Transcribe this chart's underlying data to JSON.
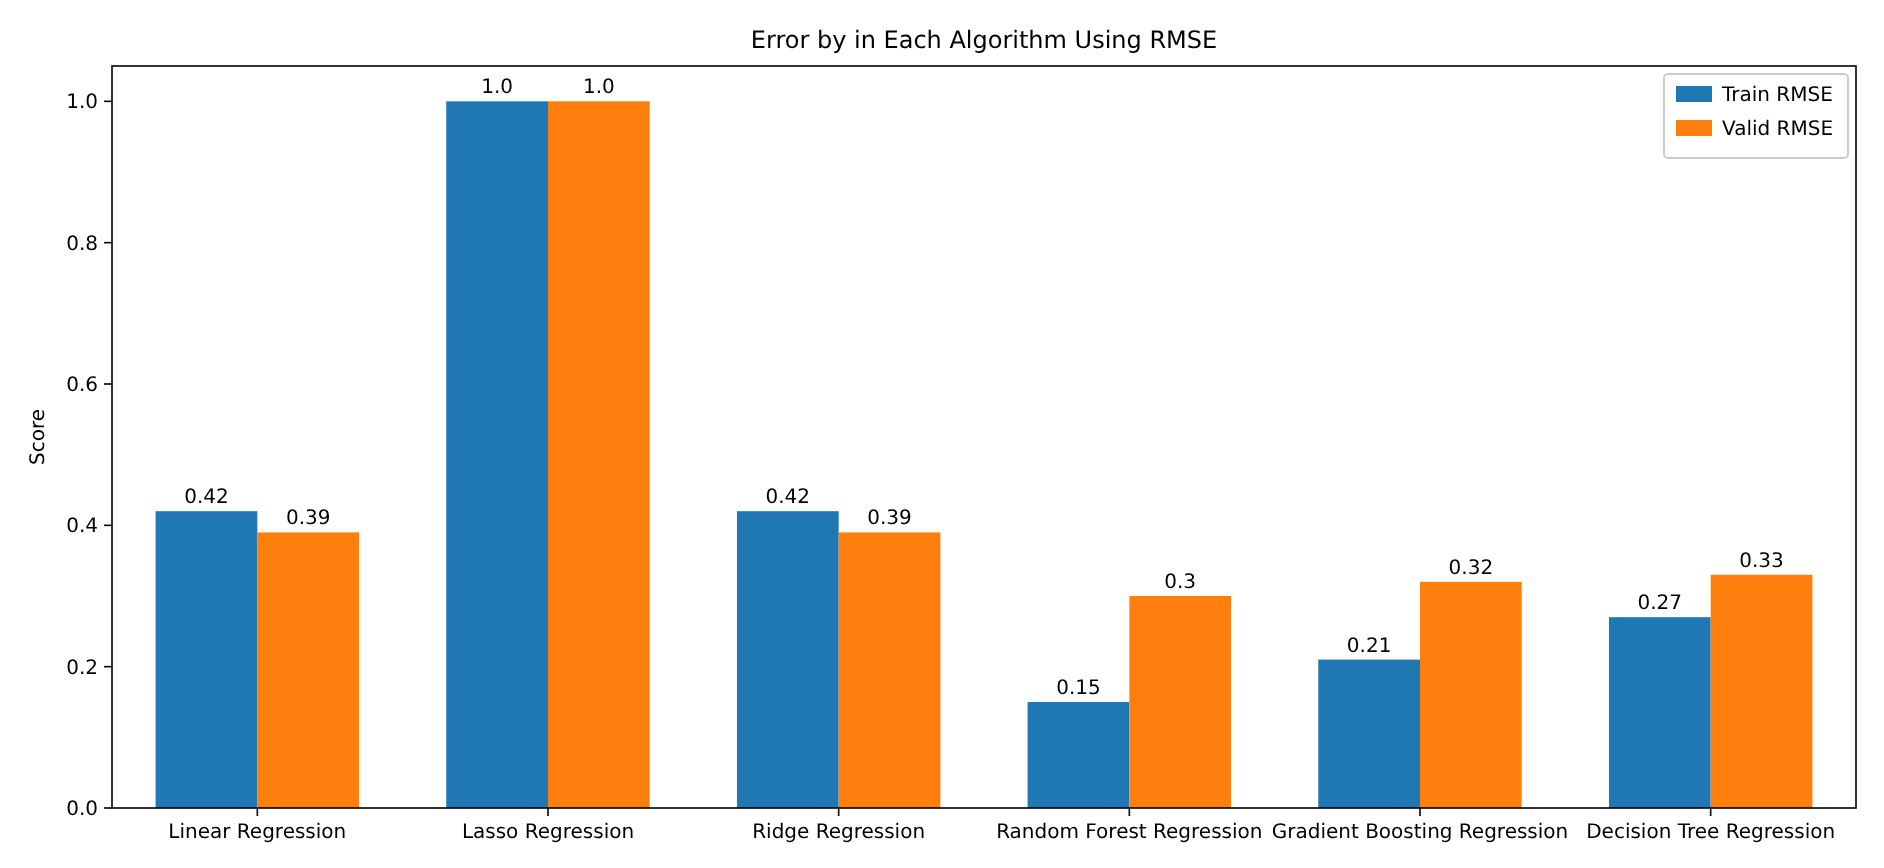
{
  "chart_data": {
    "type": "bar",
    "title": "Error by in Each Algorithm Using RMSE",
    "ylabel": "Score",
    "categories": [
      "Linear Regression",
      "Lasso Regression",
      "Ridge Regression",
      "Random Forest Regression",
      "Gradient Boosting Regression",
      "Decision Tree Regression"
    ],
    "series": [
      {
        "name": "Train RMSE",
        "color": "#1f77b4",
        "values": [
          0.42,
          1.0,
          0.42,
          0.15,
          0.21,
          0.27
        ],
        "value_labels": [
          "0.42",
          "1.0",
          "0.42",
          "0.15",
          "0.21",
          "0.27"
        ]
      },
      {
        "name": "Valid RMSE",
        "color": "#ff7f0e",
        "values": [
          0.39,
          1.0,
          0.39,
          0.3,
          0.32,
          0.33
        ],
        "value_labels": [
          "0.39",
          "1.0",
          "0.39",
          "0.3",
          "0.32",
          "0.33"
        ]
      }
    ],
    "ylim": [
      0,
      1.05
    ],
    "yticks": [
      {
        "value": 0,
        "label": "0.0"
      },
      {
        "value": 0.2,
        "label": "0.2"
      },
      {
        "value": 0.4,
        "label": "0.4"
      },
      {
        "value": 0.6,
        "label": "0.6"
      },
      {
        "value": 0.8,
        "label": "0.8"
      },
      {
        "value": 1,
        "label": "1.0"
      }
    ],
    "legend": "top right"
  }
}
